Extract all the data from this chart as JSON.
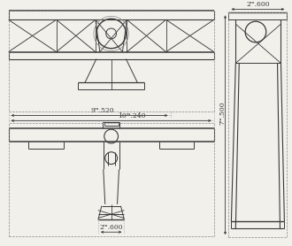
{
  "bg_color": "#f2f0eb",
  "line_color": "#3a3a3a",
  "dim_color": "#3a3a3a",
  "dashed_color": "#888888",
  "figsize": [
    3.3,
    2.78
  ],
  "dpi": 100,
  "dim_9520": "9ᵐ.520",
  "dim_10240": "10ᵐ.240",
  "dim_2600_top": "2ᵐ.600",
  "dim_7500": "7ᵐ.500",
  "dim_2600_bot": "2ᵐ.600"
}
